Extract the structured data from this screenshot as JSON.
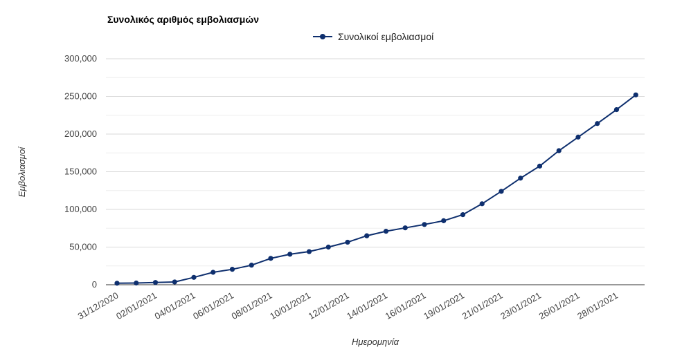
{
  "chart_data": {
    "type": "line",
    "title": "Συνολικός αριθμός εμβολιασμών",
    "xlabel": "Ημερομηνία",
    "ylabel": "Εμβολιασμοί",
    "ylim": [
      0,
      300000
    ],
    "yticks": [
      "0",
      "50,000",
      "100,000",
      "150,000",
      "200,000",
      "250,000",
      "300,000"
    ],
    "xtick_labels": [
      "31/12/2020",
      "02/01/2021",
      "04/01/2021",
      "06/01/2021",
      "08/01/2021",
      "10/01/2021",
      "12/01/2021",
      "14/01/2021",
      "16/01/2021",
      "19/01/2021",
      "21/01/2021",
      "23/01/2021",
      "26/01/2021",
      "28/01/2021"
    ],
    "xtick_indices": [
      0,
      2,
      4,
      6,
      8,
      10,
      12,
      14,
      16,
      18,
      20,
      22,
      24,
      26
    ],
    "grid": true,
    "legend_position": "top-center",
    "colors": {
      "series": "#0e2f6e",
      "grid": "#d9d9d9",
      "axis": "#333333"
    },
    "series": [
      {
        "name": "Συνολικοί εμβολιασμοί",
        "values": [
          2000,
          2300,
          3000,
          3700,
          9800,
          16500,
          20500,
          26000,
          35000,
          40500,
          44000,
          50000,
          56500,
          65000,
          71000,
          75500,
          80000,
          85000,
          93000,
          107500,
          124000,
          141500,
          157500,
          178000,
          196000,
          214000,
          232500,
          252000
        ]
      }
    ]
  }
}
